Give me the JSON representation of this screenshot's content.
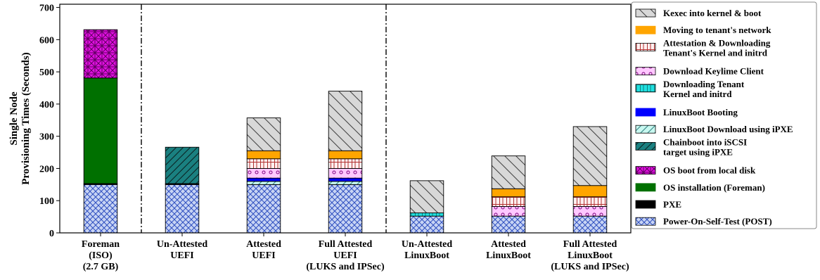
{
  "chart_data": {
    "type": "bar",
    "stacked": true,
    "title": "",
    "xlabel": "",
    "ylabel": "Single Node Provisioning Times (Seconds)",
    "ylabel_lines": [
      "Single Node",
      "Provisioning Times (Seconds)"
    ],
    "ylim": [
      0,
      710
    ],
    "yticks": [
      0,
      100,
      200,
      300,
      400,
      500,
      600,
      700
    ],
    "grid": false,
    "legend_position": "right",
    "separators_after_category_index": [
      0,
      3
    ],
    "categories": [
      [
        "Foreman",
        "(ISO)",
        "(2.7 GB)"
      ],
      [
        "Un-Attested",
        "UEFI"
      ],
      [
        "Attested",
        "UEFI"
      ],
      [
        "Full Attested",
        "UEFI",
        "(LUKS and IPSec)"
      ],
      [
        "Un-Attested",
        "LinuxBoot"
      ],
      [
        "Attested",
        "LinuxBoot"
      ],
      [
        "Full Attested",
        "LinuxBoot",
        "(LUKS and IPSec)"
      ]
    ],
    "series": [
      {
        "name": "Power-On-Self-Test (POST)",
        "color": "#c8d4f4",
        "hatch": "crosshatch",
        "hatch_color": "#3050c0",
        "values": [
          150,
          150,
          150,
          150,
          52,
          52,
          52
        ]
      },
      {
        "name": "PXE",
        "color": "#000000",
        "hatch": "none",
        "hatch_color": "#000000",
        "values": [
          3,
          3,
          0,
          0,
          0,
          0,
          0
        ]
      },
      {
        "name": "OS installation (Foreman)",
        "color": "#007000",
        "hatch": "none",
        "hatch_color": "#007000",
        "values": [
          328,
          0,
          0,
          0,
          0,
          0,
          0
        ]
      },
      {
        "name": "OS boot from local disk",
        "color": "#e010e0",
        "hatch": "hatch-cross",
        "hatch_color": "#600060",
        "values": [
          150,
          0,
          0,
          0,
          0,
          0,
          0
        ]
      },
      {
        "name": "Chainboot into iSCSI target using iPXE",
        "color": "#1a8080",
        "hatch": "diag-forward",
        "hatch_color": "#0a2020",
        "values": [
          0,
          113,
          0,
          0,
          0,
          0,
          0
        ]
      },
      {
        "name": "LinuxBoot Download using iPXE",
        "color": "#c8f8f0",
        "hatch": "diag-forward",
        "hatch_color": "#308080",
        "values": [
          0,
          0,
          10,
          10,
          0,
          0,
          0
        ]
      },
      {
        "name": "LinuxBoot Booting",
        "color": "#0000ff",
        "hatch": "none",
        "hatch_color": "#0000ff",
        "values": [
          0,
          0,
          10,
          10,
          0,
          0,
          0
        ]
      },
      {
        "name": "Downloading Tenant Kernel and initrd",
        "color": "#20e0e0",
        "hatch": "grid",
        "hatch_color": "#108080",
        "values": [
          0,
          0,
          0,
          0,
          10,
          0,
          0
        ]
      },
      {
        "name": "Download Keylime Client",
        "color": "#ffc8ff",
        "hatch": "circles",
        "hatch_color": "#800080",
        "values": [
          0,
          0,
          30,
          30,
          0,
          30,
          30
        ]
      },
      {
        "name": "Attestation & Downloading Tenant's Kernel and initrd",
        "color": "#fff0f0",
        "hatch": "grid",
        "hatch_color": "#b03030",
        "values": [
          0,
          0,
          30,
          30,
          0,
          30,
          30
        ]
      },
      {
        "name": "Moving to tenant's network",
        "color": "#ffa500",
        "hatch": "none",
        "hatch_color": "#ffa500",
        "values": [
          0,
          0,
          25,
          25,
          0,
          25,
          35
        ]
      },
      {
        "name": "Kexec into kernel & boot",
        "color": "#d8d8d8",
        "hatch": "diag-back",
        "hatch_color": "#404040",
        "values": [
          0,
          0,
          102,
          185,
          100,
          102,
          183
        ]
      }
    ],
    "legend_order": [
      11,
      10,
      9,
      8,
      7,
      6,
      5,
      4,
      3,
      2,
      1,
      0
    ],
    "legend_labels": [
      [
        "Kexec into kernel & boot"
      ],
      [
        "Moving to tenant's network"
      ],
      [
        "Attestation & Downloading",
        "Tenant's Kernel and initrd"
      ],
      [
        "Download Keylime Client"
      ],
      [
        "Downloading Tenant",
        "Kernel and initrd"
      ],
      [
        "LinuxBoot Booting"
      ],
      [
        "LinuxBoot Download using iPXE"
      ],
      [
        "Chainboot into iSCSI",
        "target using iPXE"
      ],
      [
        "OS boot from local disk"
      ],
      [
        "OS installation (Foreman)"
      ],
      [
        "PXE"
      ],
      [
        "Power-On-Self-Test (POST)"
      ]
    ]
  }
}
